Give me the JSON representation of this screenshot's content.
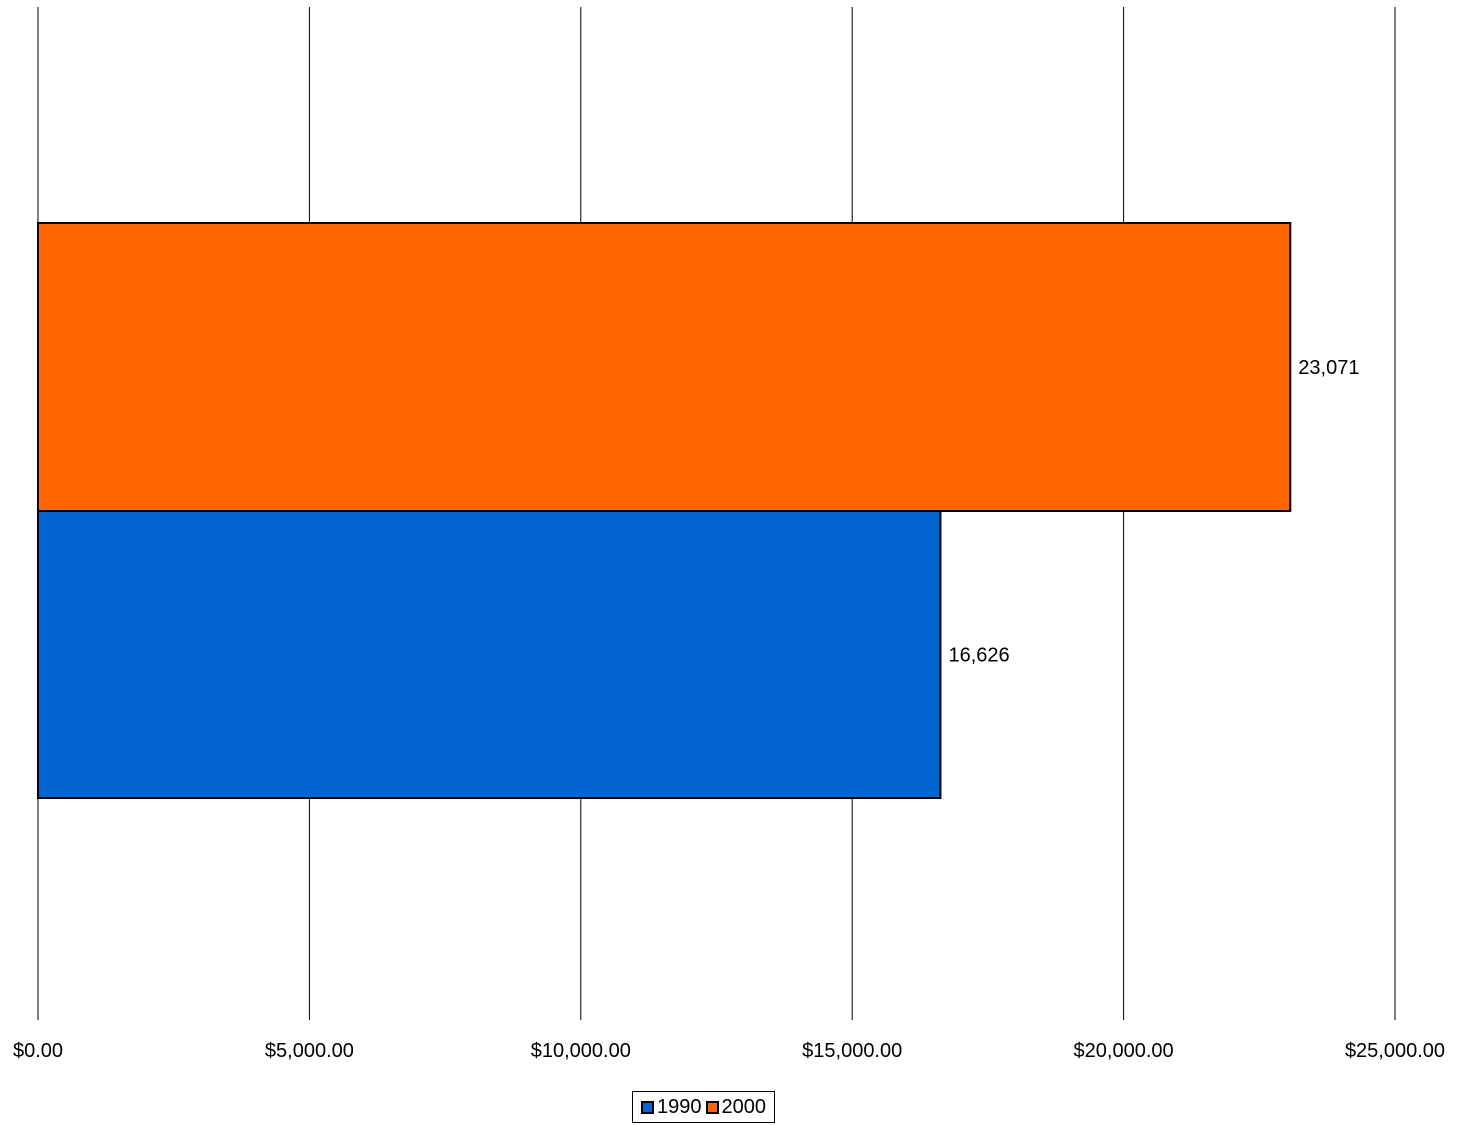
{
  "chart_data": {
    "type": "bar",
    "orientation": "horizontal",
    "xlim": [
      0,
      25000
    ],
    "x_ticks": [
      0,
      5000,
      10000,
      15000,
      20000,
      25000
    ],
    "x_tick_labels": [
      "$0.00",
      "$5,000.00",
      "$10,000.00",
      "$15,000.00",
      "$20,000.00",
      "$25,000.00"
    ],
    "grid": "vertical",
    "legend_position": "bottom",
    "series": [
      {
        "name": "1990",
        "value": 16626,
        "label": "16,626",
        "color": "#0366d0"
      },
      {
        "name": "2000",
        "value": 23071,
        "label": "23,071",
        "color": "#ff6600"
      }
    ]
  },
  "legend": {
    "items": [
      {
        "label": "1990",
        "color": "#0366d0"
      },
      {
        "label": "2000",
        "color": "#ff6600"
      }
    ]
  }
}
